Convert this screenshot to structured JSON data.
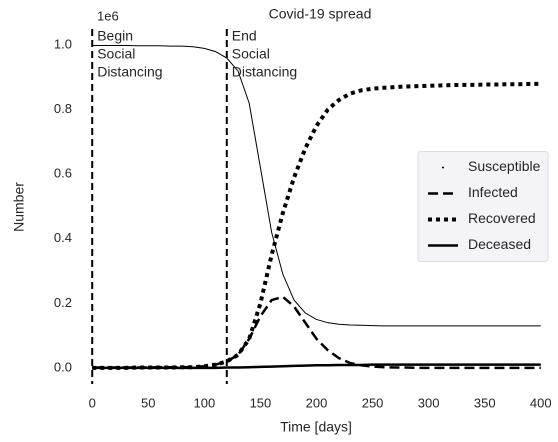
{
  "chart_data": {
    "type": "line",
    "title": "Covid-19 spread",
    "xlabel": "Time [days]",
    "ylabel": "Number",
    "y_offset_text": "1e6",
    "x": [
      0,
      10,
      20,
      30,
      40,
      50,
      60,
      70,
      80,
      90,
      100,
      110,
      120,
      130,
      140,
      150,
      160,
      170,
      180,
      190,
      200,
      210,
      220,
      230,
      240,
      250,
      260,
      270,
      280,
      290,
      300,
      310,
      320,
      330,
      340,
      350,
      360,
      370,
      380,
      390,
      400
    ],
    "series": [
      {
        "name": "Susceptible",
        "color": "#000000",
        "linestyle": "solid",
        "linewidth": 1,
        "values": [
          0.999,
          0.999,
          0.999,
          0.999,
          0.998,
          0.998,
          0.998,
          0.997,
          0.997,
          0.995,
          0.99,
          0.98,
          0.96,
          0.92,
          0.82,
          0.62,
          0.42,
          0.29,
          0.21,
          0.17,
          0.15,
          0.14,
          0.135,
          0.133,
          0.132,
          0.131,
          0.13,
          0.13,
          0.13,
          0.13,
          0.13,
          0.13,
          0.13,
          0.13,
          0.13,
          0.13,
          0.13,
          0.13,
          0.13,
          0.13,
          0.13
        ]
      },
      {
        "name": "Infected",
        "color": "#000000",
        "linestyle": "dashed",
        "linewidth": 2.5,
        "values": [
          0.001,
          0.001,
          0.001,
          0.001,
          0.001,
          0.001,
          0.002,
          0.002,
          0.002,
          0.003,
          0.005,
          0.01,
          0.02,
          0.04,
          0.09,
          0.16,
          0.21,
          0.22,
          0.19,
          0.14,
          0.09,
          0.055,
          0.03,
          0.015,
          0.008,
          0.004,
          0.002,
          0.001,
          0.001,
          0,
          0,
          0,
          0,
          0,
          0,
          0,
          0,
          0,
          0,
          0,
          0
        ]
      },
      {
        "name": "Recovered",
        "color": "#000000",
        "linestyle": "dotted",
        "linewidth": 4,
        "values": [
          0,
          0,
          0,
          0,
          0.001,
          0.001,
          0.001,
          0.001,
          0.002,
          0.002,
          0.005,
          0.01,
          0.02,
          0.04,
          0.09,
          0.2,
          0.35,
          0.48,
          0.59,
          0.68,
          0.75,
          0.8,
          0.83,
          0.85,
          0.86,
          0.865,
          0.868,
          0.87,
          0.872,
          0.873,
          0.874,
          0.875,
          0.876,
          0.877,
          0.877,
          0.878,
          0.878,
          0.879,
          0.879,
          0.88,
          0.88
        ]
      },
      {
        "name": "Deceased",
        "color": "#000000",
        "linestyle": "solid",
        "linewidth": 2.5,
        "values": [
          0,
          0,
          0,
          0,
          0,
          0,
          0,
          0,
          0,
          0,
          0,
          0,
          0.001,
          0.001,
          0.002,
          0.003,
          0.004,
          0.005,
          0.006,
          0.007,
          0.008,
          0.008,
          0.009,
          0.009,
          0.009,
          0.01,
          0.01,
          0.01,
          0.01,
          0.01,
          0.01,
          0.01,
          0.01,
          0.01,
          0.01,
          0.01,
          0.01,
          0.01,
          0.01,
          0.01,
          0.01
        ]
      }
    ],
    "annotations": [
      {
        "x": 0,
        "lines": [
          "Begin",
          "Social",
          "Distancing"
        ]
      },
      {
        "x": 120,
        "lines": [
          "End",
          "Social",
          "Distancing"
        ]
      }
    ],
    "xlim": [
      -10,
      410
    ],
    "xticks": [
      0,
      50,
      100,
      150,
      200,
      250,
      300,
      350,
      400
    ],
    "ylim": [
      -0.05,
      1.05
    ],
    "yticks": [
      {
        "value": 0,
        "label": "0.0"
      },
      0.2,
      0.4,
      0.6,
      0.8,
      {
        "value": 1,
        "label": "1.0"
      }
    ],
    "legend": "center right"
  }
}
